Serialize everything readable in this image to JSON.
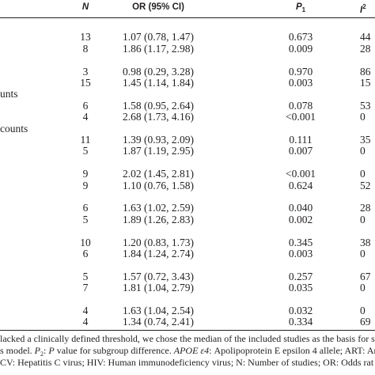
{
  "table": {
    "header": [
      {
        "text": "N"
      },
      {
        "text": "OR (95% CI)"
      },
      {
        "text": "P",
        "sub": "1"
      },
      {
        "text": "I",
        "sup": "2"
      }
    ],
    "groups": [
      {
        "rows": [
          {
            "n": "13",
            "or": "1.07 (0.78, 1.47)",
            "p1": "0.673",
            "i2": "44"
          },
          {
            "n": "8",
            "or": "1.86 (1.17, 2.98)",
            "p1": "0.009",
            "i2": "28"
          }
        ]
      },
      {
        "rows": [
          {
            "n": "3",
            "or": "0.98 (0.29, 3.28)",
            "p1": "0.970",
            "i2": "86"
          },
          {
            "n": "15",
            "or": "1.45 (1.14, 1.84)",
            "p1": "0.003",
            "i2": "15"
          }
        ]
      },
      {
        "label": "unts",
        "rows": [
          {
            "n": "6",
            "or": "1.58 (0.95, 2.64)",
            "p1": "0.078",
            "i2": "53"
          },
          {
            "n": "4",
            "or": "2.68 (1.73, 4.16)",
            "p1": "<0.001",
            "i2": "0"
          }
        ]
      },
      {
        "label": "counts",
        "rows": [
          {
            "n": "11",
            "or": "1.39 (0.93, 2.09)",
            "p1": "0.111",
            "i2": "35"
          },
          {
            "n": "5",
            "or": "1.87 (1.19, 2.95)",
            "p1": "0.007",
            "i2": "0"
          }
        ]
      },
      {
        "rows": [
          {
            "n": "9",
            "or": "2.02 (1.45, 2.81)",
            "p1": "<0.001",
            "i2": "0"
          },
          {
            "n": "9",
            "or": "1.10 (0.76, 1.58)",
            "p1": "0.624",
            "i2": "52"
          }
        ]
      },
      {
        "rows": [
          {
            "n": "6",
            "or": "1.63 (1.02, 2.59)",
            "p1": "0.040",
            "i2": "28"
          },
          {
            "n": "5",
            "or": "1.89 (1.26, 2.83)",
            "p1": "0.002",
            "i2": "0"
          }
        ]
      },
      {
        "rows": [
          {
            "n": "10",
            "or": "1.20 (0.83, 1.73)",
            "p1": "0.345",
            "i2": "38"
          },
          {
            "n": "6",
            "or": "1.84 (1.24, 2.74)",
            "p1": "0.003",
            "i2": "0"
          }
        ]
      },
      {
        "rows": [
          {
            "n": "5",
            "or": "1.57 (0.72, 3.43)",
            "p1": "0.257",
            "i2": "67"
          },
          {
            "n": "7",
            "or": "1.81 (1.04, 2.79)",
            "p1": "0.035",
            "i2": "0"
          }
        ]
      },
      {
        "rows": [
          {
            "n": "4",
            "or": "1.63 (1.04, 2.54)",
            "p1": "0.032",
            "i2": "0"
          },
          {
            "n": "4",
            "or": "1.34 (0.74, 2.41)",
            "p1": "0.334",
            "i2": "69"
          }
        ]
      }
    ]
  },
  "footnote": [
    [
      {
        "text": "lacked a clinically defined threshold, we chose the median of the included studies as the basis for subgro"
      }
    ],
    [
      {
        "text": "s model. "
      },
      {
        "text": "P",
        "italic": true
      },
      {
        "text": "2",
        "sub": true
      },
      {
        "text": ": "
      },
      {
        "text": "P",
        "italic": true
      },
      {
        "text": " value for subgroup difference. "
      },
      {
        "text": "APOE ε4",
        "italic": true
      },
      {
        "text": ": Apolipoprotein E epsilon 4 allele; ART: An"
      }
    ],
    [
      {
        "text": "CV: Hepatitis C virus; HIV: Human immunodeficiency virus; N: Number of studies; OR: Odds rat"
      }
    ]
  ]
}
